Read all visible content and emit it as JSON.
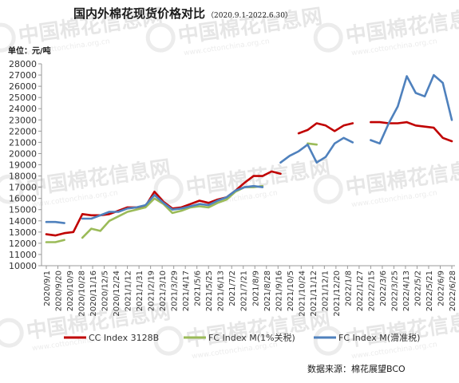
{
  "chart_data": {
    "type": "line",
    "title": "国内外棉花现货价格对比",
    "subtitle": "（2020.9.1-2022.6.30）",
    "unit_label": "单位：元/吨",
    "source": "数据来源：棉花展望BCO",
    "watermark": "中国棉花信息网",
    "watermark_sub": "www.cottonchina.org.cn",
    "ylim": [
      10000,
      28000
    ],
    "y_ticks": [
      "10000",
      "11000",
      "12000",
      "13000",
      "14000",
      "15000",
      "16000",
      "17000",
      "18000",
      "19000",
      "20000",
      "21000",
      "22000",
      "23000",
      "24000",
      "25000",
      "26000",
      "27000",
      "28000"
    ],
    "x_labels": [
      "2020/9/1",
      "2020/9/20",
      "2020/10/9",
      "2020/10/28",
      "2020/11/16",
      "2020/12/5",
      "2020/12/24",
      "2021/1/12",
      "2021/1/31",
      "2021/2/19",
      "2021/3/10",
      "2021/3/29",
      "2021/4/17",
      "2021/5/6",
      "2021/5/25",
      "2021/6/13",
      "2021/7/2",
      "2021/7/21",
      "2021/8/9",
      "2021/8/28",
      "2021/9/16",
      "2021/10/5",
      "2021/10/24",
      "2021/11/12",
      "2021/12/1",
      "2021/12/20",
      "2022/1/8",
      "2022/1/27",
      "2022/2/15",
      "2022/3/6",
      "2022/3/25",
      "2022/4/13",
      "2022/5/2",
      "2022/5/21",
      "2022/6/9",
      "2022/6/28"
    ],
    "series": [
      {
        "name": "CC Index 3128B",
        "color": "#c00000",
        "values": [
          12800,
          12700,
          12900,
          13000,
          14600,
          14500,
          14500,
          14600,
          14900,
          15200,
          15200,
          15300,
          16600,
          15700,
          15100,
          15200,
          15500,
          15800,
          15600,
          15900,
          16100,
          16700,
          17400,
          18000,
          18000,
          18400,
          18200,
          null,
          21800,
          22100,
          22700,
          22500,
          22000,
          22500,
          22700,
          null,
          22800,
          22800,
          22700,
          22700,
          22800,
          22500,
          22400,
          22300,
          21400,
          21100
        ]
      },
      {
        "name": "FC Index M(1%关税)",
        "color": "#9bbb59",
        "values": [
          12100,
          12100,
          12300,
          null,
          12500,
          13300,
          13100,
          14000,
          14400,
          14800,
          15000,
          15200,
          16000,
          15500,
          14700,
          14900,
          15200,
          15300,
          15200,
          15600,
          15900,
          16600,
          17000,
          17000,
          17100,
          null,
          null,
          null,
          null,
          20900,
          20800,
          null,
          null,
          null,
          null,
          null,
          null,
          null,
          null,
          null,
          null,
          null,
          null,
          null,
          null,
          null
        ]
      },
      {
        "name": "FC Index M(滑准税)",
        "color": "#4f81bd",
        "values": [
          13900,
          13900,
          13800,
          null,
          14200,
          14200,
          14500,
          14800,
          14800,
          15100,
          15200,
          15400,
          16300,
          15600,
          15000,
          15100,
          15300,
          15500,
          15400,
          15800,
          16100,
          16700,
          17000,
          17100,
          17000,
          null,
          19200,
          19800,
          20200,
          20800,
          19200,
          19700,
          20900,
          21400,
          21000,
          null,
          21200,
          20900,
          22700,
          24200,
          26900,
          25400,
          25100,
          27000,
          26300,
          23000
        ]
      }
    ]
  }
}
